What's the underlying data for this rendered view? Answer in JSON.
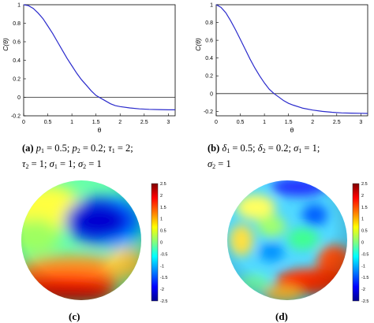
{
  "figure": {
    "colors": {
      "curve": "#2b2bcc",
      "zero_line": "#222222"
    },
    "panels": [
      {
        "id": "a",
        "label": "(a)",
        "caption": {
          "line1": [
            "p",
            "1",
            " = 0.5;  ",
            "p",
            "2",
            " = 0.2;  ",
            "τ",
            "1",
            " = 2;"
          ],
          "line2": [
            "τ",
            "2",
            " = 1;  ",
            "σ",
            "1",
            " = 1;  ",
            "σ",
            "2",
            " = 1"
          ]
        },
        "ylabel": "C(θ)",
        "xlabel": "θ"
      },
      {
        "id": "b",
        "label": "(b)",
        "caption": {
          "line1": [
            "δ",
            "1",
            " = 0.5;  ",
            "δ",
            "2",
            " = 0.2;  ",
            "σ",
            "1",
            " = 1;"
          ],
          "line2": [
            "σ",
            "2",
            " = 1"
          ]
        },
        "ylabel": "C(θ)",
        "xlabel": "θ"
      },
      {
        "id": "c",
        "label": "(c)"
      },
      {
        "id": "d",
        "label": "(d)"
      }
    ],
    "colorbar": {
      "ticks": [
        "2.5",
        "2",
        "1.5",
        "1",
        "0.5",
        "0",
        "-0.5",
        "-1",
        "-1.5",
        "-2",
        "-2.5"
      ],
      "stops": [
        "#7f0000",
        "#ff0000",
        "#ff8000",
        "#ffff00",
        "#80ff80",
        "#00ffff",
        "#0080ff",
        "#0000ff",
        "#00008f"
      ]
    }
  },
  "chart_data": [
    {
      "type": "line",
      "title": "",
      "xlabel": "θ",
      "ylabel": "C(θ)",
      "xlim": [
        0,
        3.14159
      ],
      "ylim": [
        -0.2,
        1
      ],
      "xticks": [
        "0",
        "0.5",
        "1",
        "1.5",
        "2",
        "2.5",
        "3"
      ],
      "yticks": [
        "1",
        "0.8",
        "0.6",
        "0.4",
        "0.2",
        "0",
        "-0.2"
      ],
      "series": [
        {
          "x": [
            0,
            0.1,
            0.2,
            0.3,
            0.4,
            0.5,
            0.6,
            0.7,
            0.8,
            0.9,
            1.0,
            1.1,
            1.2,
            1.3,
            1.4,
            1.5,
            1.6,
            1.7,
            1.8,
            1.9,
            2.0,
            2.2,
            2.4,
            2.6,
            2.8,
            3.0,
            3.14
          ],
          "y": [
            1.0,
            0.99,
            0.96,
            0.91,
            0.85,
            0.77,
            0.69,
            0.6,
            0.51,
            0.42,
            0.34,
            0.26,
            0.19,
            0.13,
            0.07,
            0.02,
            -0.01,
            -0.04,
            -0.07,
            -0.09,
            -0.1,
            -0.115,
            -0.125,
            -0.13,
            -0.133,
            -0.135,
            -0.135
          ]
        }
      ],
      "zero_line": 0
    },
    {
      "type": "line",
      "title": "",
      "xlabel": "θ",
      "ylabel": "C(θ)",
      "xlim": [
        0,
        3.14159
      ],
      "ylim": [
        -0.25,
        1
      ],
      "xticks": [
        "0",
        "0.5",
        "1",
        "1.5",
        "2",
        "2.5",
        "3"
      ],
      "yticks": [
        "1",
        "0.8",
        "0.6",
        "0.4",
        "0.2",
        "0",
        "-0.2"
      ],
      "series": [
        {
          "x": [
            0,
            0.1,
            0.2,
            0.3,
            0.4,
            0.5,
            0.6,
            0.7,
            0.8,
            0.9,
            1.0,
            1.1,
            1.2,
            1.3,
            1.4,
            1.5,
            1.6,
            1.8,
            2.0,
            2.2,
            2.4,
            2.6,
            2.8,
            3.0,
            3.14
          ],
          "y": [
            1.0,
            0.97,
            0.91,
            0.82,
            0.72,
            0.61,
            0.5,
            0.39,
            0.29,
            0.2,
            0.12,
            0.05,
            0.0,
            -0.04,
            -0.08,
            -0.11,
            -0.13,
            -0.165,
            -0.185,
            -0.2,
            -0.21,
            -0.217,
            -0.22,
            -0.222,
            -0.223
          ]
        }
      ],
      "zero_line": 0
    }
  ]
}
